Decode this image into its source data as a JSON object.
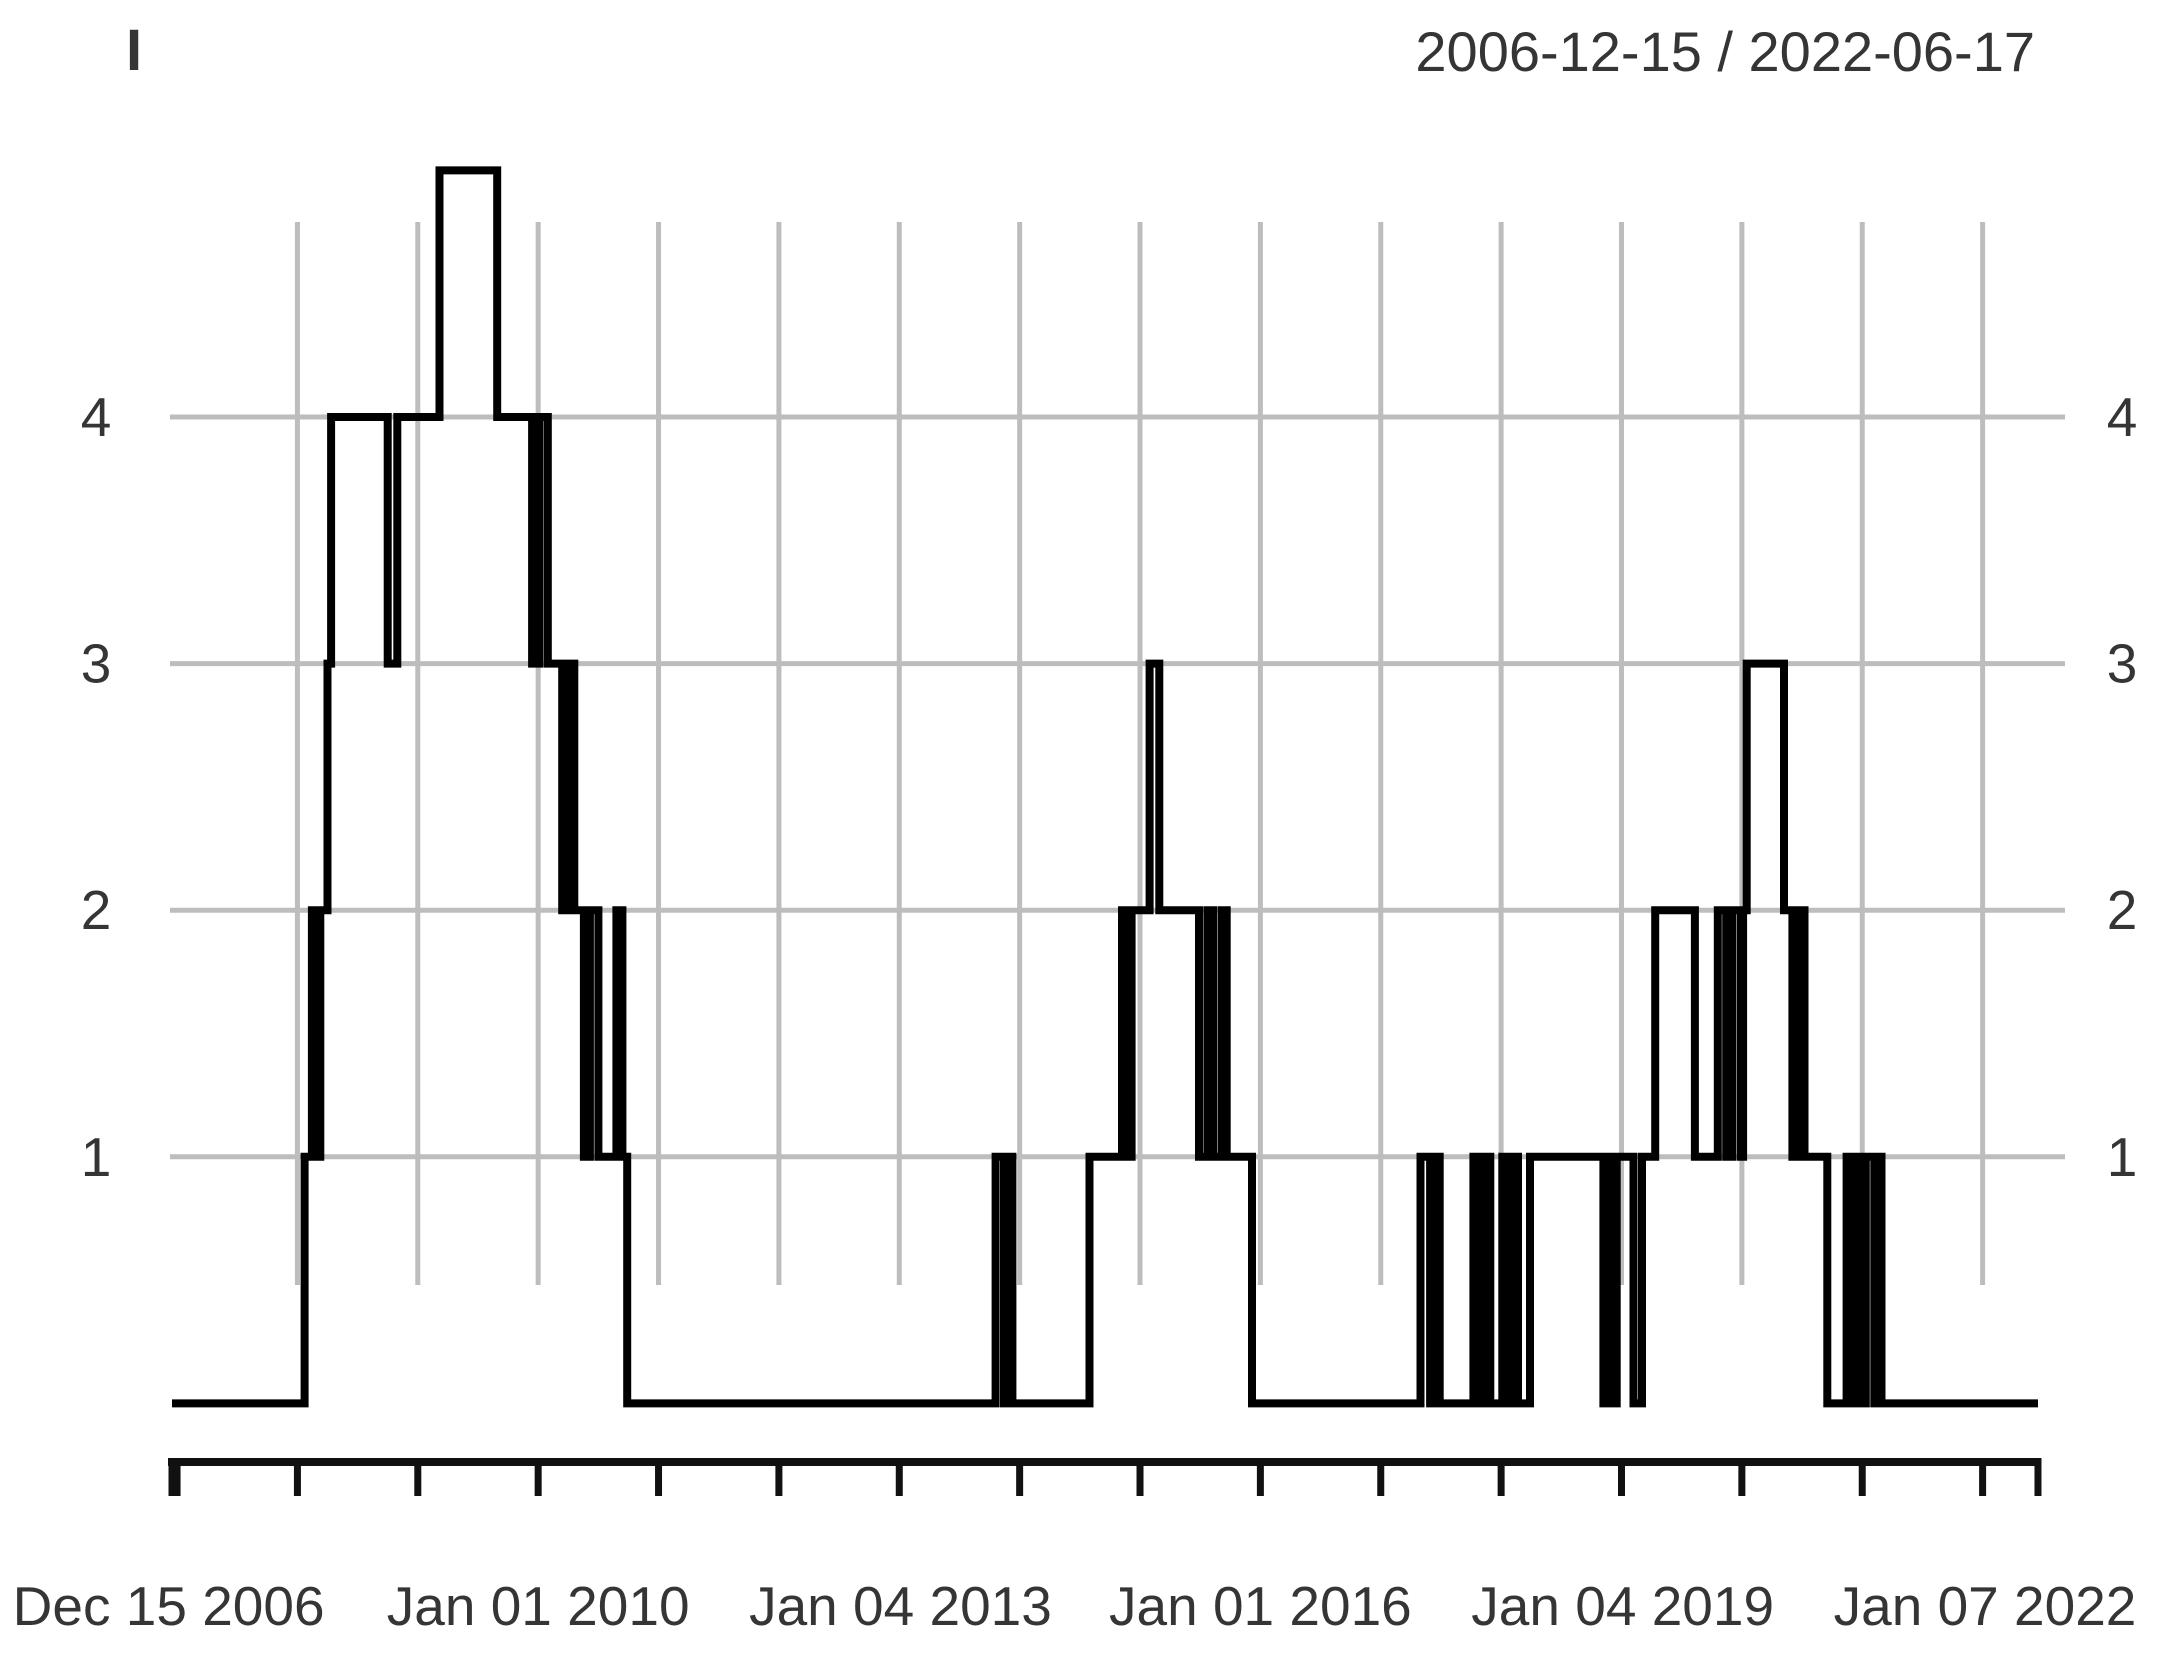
{
  "chart": {
    "title": "I",
    "date_range": "2006-12-15 / 2022-06-17"
  },
  "chart_data": {
    "type": "line",
    "subtype": "step",
    "title": "I",
    "subtitle": "2006-12-15 / 2022-06-17",
    "xlabel": "",
    "ylabel": "",
    "legend": "none",
    "grid": "on",
    "x_range_years": [
      2006.958,
      2022.46
    ],
    "y_range": [
      0,
      5.05
    ],
    "y_ticks": [
      1,
      2,
      3,
      4
    ],
    "y_tick_sides": [
      "left",
      "right"
    ],
    "x_grid_years": [
      2008,
      2009,
      2010,
      2011,
      2012,
      2013,
      2014,
      2015,
      2016,
      2017,
      2018,
      2019,
      2020,
      2021,
      2022
    ],
    "x_tick_years": [
      2006.958,
      2007,
      2008,
      2009,
      2010,
      2011,
      2012,
      2013,
      2014,
      2015,
      2016,
      2017,
      2018,
      2019,
      2020,
      2021,
      2022,
      2022.46
    ],
    "x_labels": [
      {
        "text": "Dec 15 2006",
        "year": 2006.93
      },
      {
        "text": "Jan 01 2010",
        "year": 2010.0
      },
      {
        "text": "Jan 04 2013",
        "year": 2013.01
      },
      {
        "text": "Jan 01 2016",
        "year": 2016.0
      },
      {
        "text": "Jan 04 2019",
        "year": 2019.01
      },
      {
        "text": "Jan 07 2022",
        "year": 2022.02
      }
    ],
    "colors": {
      "line": "#000000",
      "grid": "#bdbdbd",
      "axis": "#111111",
      "text": "#353535",
      "background": "#ffffff"
    },
    "series": [
      {
        "name": "I",
        "steps": [
          [
            2006.958,
            0
          ],
          [
            2008.06,
            1
          ],
          [
            2008.12,
            2
          ],
          [
            2008.16,
            1
          ],
          [
            2008.19,
            2
          ],
          [
            2008.25,
            3
          ],
          [
            2008.28,
            4
          ],
          [
            2008.75,
            3
          ],
          [
            2008.83,
            4
          ],
          [
            2009.18,
            5
          ],
          [
            2009.66,
            4
          ],
          [
            2009.95,
            3
          ],
          [
            2010.01,
            4
          ],
          [
            2010.08,
            3
          ],
          [
            2010.2,
            2
          ],
          [
            2010.25,
            3
          ],
          [
            2010.3,
            2
          ],
          [
            2010.38,
            1
          ],
          [
            2010.43,
            2
          ],
          [
            2010.5,
            1
          ],
          [
            2010.65,
            2
          ],
          [
            2010.7,
            1
          ],
          [
            2010.74,
            0
          ],
          [
            2013.8,
            1
          ],
          [
            2013.87,
            0
          ],
          [
            2013.9,
            1
          ],
          [
            2013.94,
            0
          ],
          [
            2014.58,
            1
          ],
          [
            2014.85,
            2
          ],
          [
            2014.9,
            1
          ],
          [
            2014.93,
            2
          ],
          [
            2015.08,
            3
          ],
          [
            2015.16,
            2
          ],
          [
            2015.49,
            1
          ],
          [
            2015.56,
            2
          ],
          [
            2015.61,
            1
          ],
          [
            2015.68,
            2
          ],
          [
            2015.72,
            1
          ],
          [
            2015.93,
            0
          ],
          [
            2017.33,
            1
          ],
          [
            2017.41,
            0
          ],
          [
            2017.44,
            1
          ],
          [
            2017.49,
            0
          ],
          [
            2017.77,
            1
          ],
          [
            2017.83,
            0
          ],
          [
            2017.86,
            1
          ],
          [
            2017.91,
            0
          ],
          [
            2018.01,
            1
          ],
          [
            2018.06,
            0
          ],
          [
            2018.09,
            1
          ],
          [
            2018.14,
            0
          ],
          [
            2018.24,
            1
          ],
          [
            2018.85,
            0
          ],
          [
            2018.89,
            1
          ],
          [
            2018.93,
            0
          ],
          [
            2018.96,
            1
          ],
          [
            2019.1,
            0
          ],
          [
            2019.17,
            1
          ],
          [
            2019.28,
            2
          ],
          [
            2019.61,
            1
          ],
          [
            2019.8,
            2
          ],
          [
            2019.87,
            1
          ],
          [
            2019.92,
            2
          ],
          [
            2019.99,
            1
          ],
          [
            2020.01,
            2
          ],
          [
            2020.04,
            3
          ],
          [
            2020.35,
            2
          ],
          [
            2020.42,
            1
          ],
          [
            2020.46,
            2
          ],
          [
            2020.52,
            1
          ],
          [
            2020.71,
            0
          ],
          [
            2020.87,
            1
          ],
          [
            2020.92,
            0
          ],
          [
            2020.95,
            1
          ],
          [
            2021.0,
            0
          ],
          [
            2021.03,
            1
          ],
          [
            2021.1,
            0
          ],
          [
            2021.12,
            1
          ],
          [
            2021.16,
            0
          ]
        ]
      }
    ]
  }
}
